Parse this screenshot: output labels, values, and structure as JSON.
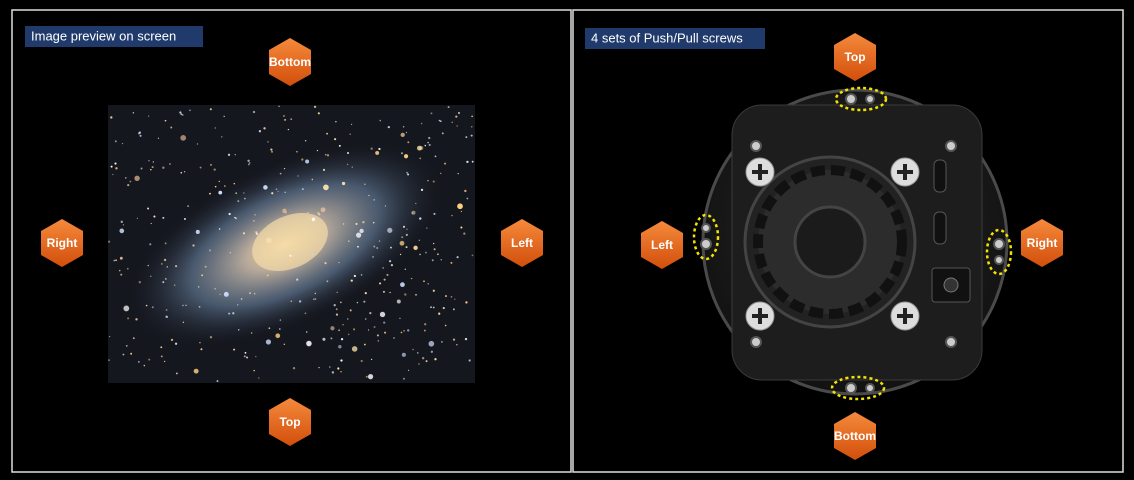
{
  "panels": [
    {
      "title": "Image preview on screen",
      "labels": [
        "Bottom",
        "Right",
        "Left",
        "Top"
      ]
    },
    {
      "title": "4 sets of Push/Pull screws",
      "labels": [
        "Top",
        "Left",
        "Right",
        "Bottom"
      ]
    }
  ]
}
